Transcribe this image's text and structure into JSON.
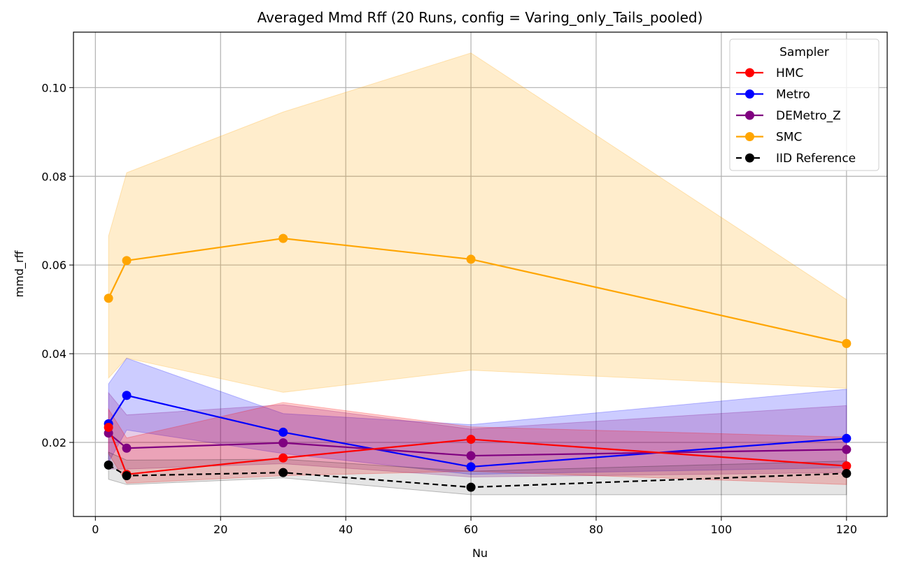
{
  "chart_data": {
    "type": "line",
    "title": "Averaged Mmd Rff (20 Runs, config = Varing_only_Tails_pooled)",
    "xlabel": "Nu",
    "ylabel": "mmd_rff",
    "xlim": [
      -3.5,
      126.5
    ],
    "ylim": [
      0.0033,
      0.1125
    ],
    "xticks": [
      0,
      20,
      40,
      60,
      80,
      100,
      120
    ],
    "yticks": [
      0.02,
      0.04,
      0.06,
      0.08,
      0.1
    ],
    "xtick_labels": [
      "0",
      "20",
      "40",
      "60",
      "80",
      "100",
      "120"
    ],
    "ytick_labels": [
      "0.02",
      "0.04",
      "0.06",
      "0.08",
      "0.10"
    ],
    "grid": true,
    "legend": {
      "title": "Sampler",
      "position": "top-right"
    },
    "x": [
      2.1,
      5,
      30,
      60,
      120
    ],
    "series": [
      {
        "name": "SMC",
        "color": "#ffa500",
        "values": [
          0.0525,
          0.061,
          0.066,
          0.0613,
          0.0423
        ],
        "upper": [
          0.0665,
          0.0808,
          0.0945,
          0.1078,
          0.0522
        ],
        "lower": [
          0.0345,
          0.039,
          0.0313,
          0.0363,
          0.0322
        ],
        "dashed": false
      },
      {
        "name": "Metro",
        "color": "#0000ff",
        "values": [
          0.0242,
          0.0306,
          0.0223,
          0.0145,
          0.0209
        ],
        "upper": [
          0.0332,
          0.039,
          0.0265,
          0.024,
          0.032
        ],
        "lower": [
          0.0155,
          0.0228,
          0.0175,
          0.0128,
          0.0143
        ],
        "dashed": false
      },
      {
        "name": "DEMetro_Z",
        "color": "#800080",
        "values": [
          0.0221,
          0.0187,
          0.0199,
          0.017,
          0.0184
        ],
        "upper": [
          0.0312,
          0.0262,
          0.0285,
          0.023,
          0.0283
        ],
        "lower": [
          0.014,
          0.014,
          0.0152,
          0.0122,
          0.0132
        ],
        "dashed": false
      },
      {
        "name": "HMC",
        "color": "#ff0000",
        "values": [
          0.0234,
          0.0128,
          0.0165,
          0.0207,
          0.0147
        ],
        "upper": [
          0.0275,
          0.021,
          0.029,
          0.0235,
          0.0212
        ],
        "lower": [
          0.0175,
          0.0108,
          0.0125,
          0.0135,
          0.0105
        ],
        "dashed": false
      },
      {
        "name": "IID Reference",
        "color": "#000000",
        "values": [
          0.0149,
          0.0125,
          0.0132,
          0.0099,
          0.013
        ],
        "upper": [
          0.0178,
          0.016,
          0.0162,
          0.0135,
          0.0158
        ],
        "lower": [
          0.0117,
          0.0105,
          0.012,
          0.0082,
          0.0082
        ],
        "dashed": true
      }
    ],
    "legend_order": [
      "HMC",
      "Metro",
      "DEMetro_Z",
      "SMC",
      "IID Reference"
    ]
  }
}
